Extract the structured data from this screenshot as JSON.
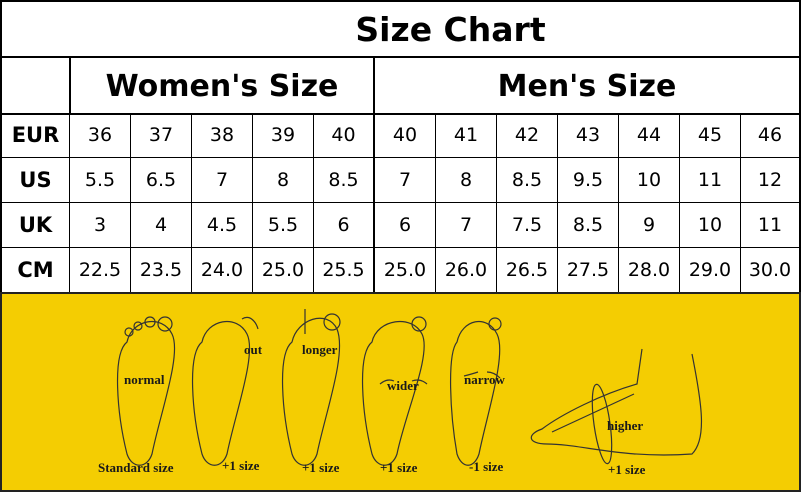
{
  "title": "Size Chart",
  "groups": {
    "women": "Women's Size",
    "men": "Men's Size"
  },
  "rows": [
    {
      "label": "EUR",
      "women": [
        "36",
        "37",
        "38",
        "39",
        "40"
      ],
      "men": [
        "40",
        "41",
        "42",
        "43",
        "44",
        "45",
        "46"
      ]
    },
    {
      "label": "US",
      "women": [
        "5.5",
        "6.5",
        "7",
        "8",
        "8.5"
      ],
      "men": [
        "7",
        "8",
        "8.5",
        "9.5",
        "10",
        "11",
        "12"
      ]
    },
    {
      "label": "UK",
      "women": [
        "3",
        "4",
        "4.5",
        "5.5",
        "6"
      ],
      "men": [
        "6",
        "7",
        "7.5",
        "8.5",
        "9",
        "10",
        "11"
      ]
    },
    {
      "label": "CM",
      "women": [
        "22.5",
        "23.5",
        "24.0",
        "25.0",
        "25.5"
      ],
      "men": [
        "25.0",
        "26.0",
        "26.5",
        "27.5",
        "28.0",
        "29.0",
        "30.0"
      ]
    }
  ],
  "feet": [
    {
      "type": "normal",
      "advice": "Standard size"
    },
    {
      "type": "out",
      "advice": "+1 size"
    },
    {
      "type": "longer",
      "advice": "+1 size"
    },
    {
      "type": "wider",
      "advice": "+1 size"
    },
    {
      "type": "narrow",
      "advice": "-1 size"
    },
    {
      "type": "higher",
      "advice": "+1 size"
    }
  ],
  "colors": {
    "panel": "#f4cd02",
    "border": "#000000"
  }
}
